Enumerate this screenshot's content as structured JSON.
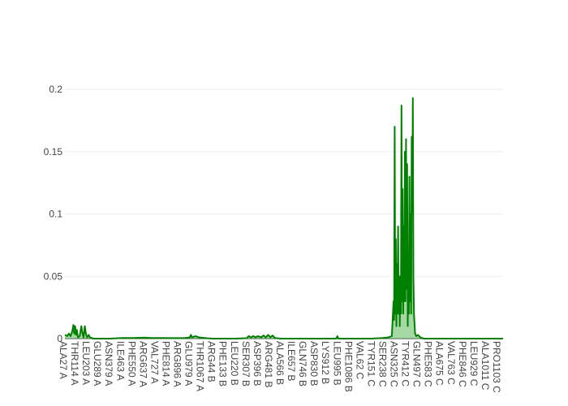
{
  "chart_data": {
    "type": "area",
    "xlabel": "",
    "ylabel": "",
    "ylim": [
      0,
      0.2
    ],
    "yticks": [
      {
        "value": 0,
        "label": "0"
      },
      {
        "value": 0.05,
        "label": "0.05"
      },
      {
        "value": 0.1,
        "label": "0.1"
      },
      {
        "value": 0.15,
        "label": "0.15"
      },
      {
        "value": 0.2,
        "label": "0.2"
      }
    ],
    "grid": true,
    "line_color": "#008000",
    "fill_color": "#5cb85c",
    "categories": [
      "ALA27 A",
      "THR114 A",
      "LEU203 A",
      "GLU289 A",
      "ASN379 A",
      "ILE463 A",
      "PHE550 A",
      "ARG637 A",
      "VAL727 A",
      "PHE814 A",
      "ARG896 A",
      "GLU979 A",
      "THR1067 A",
      "ARG44 B",
      "PHE133 B",
      "LEU220 B",
      "SER307 B",
      "ASP396 B",
      "ARG481 B",
      "ALA566 B",
      "ILE657 B",
      "GLN746 B",
      "ASP830 B",
      "LYS912 B",
      "LEU995 B",
      "PHE1086 B",
      "VAL62 C",
      "TYR151 C",
      "SER238 C",
      "ASN325 C",
      "TYR412 C",
      "GLN497 C",
      "PHE583 C",
      "ALA675 C",
      "VAL763 C",
      "PHE846 C",
      "LEU929 C",
      "ALA1011 C",
      "PRO1103 C"
    ],
    "x_range": [
      0,
      38.6
    ],
    "values": [
      [
        0.0,
        0.003
      ],
      [
        0.2,
        0.002
      ],
      [
        0.35,
        0.004
      ],
      [
        0.5,
        0.002
      ],
      [
        0.65,
        0.006
      ],
      [
        0.75,
        0.011
      ],
      [
        0.82,
        0.004
      ],
      [
        0.9,
        0.01
      ],
      [
        0.97,
        0.003
      ],
      [
        1.05,
        0.007
      ],
      [
        1.15,
        0.001
      ],
      [
        1.3,
        0.002
      ],
      [
        1.45,
        0.01
      ],
      [
        1.55,
        0.004
      ],
      [
        1.65,
        0.001
      ],
      [
        1.75,
        0.01
      ],
      [
        1.85,
        0.004
      ],
      [
        1.95,
        0.001
      ],
      [
        2.1,
        0.003
      ],
      [
        2.2,
        0.001
      ],
      [
        2.5,
        0.0
      ],
      [
        3.0,
        0.0
      ],
      [
        4.0,
        0.0
      ],
      [
        5.0,
        0.0005
      ],
      [
        6.0,
        0.0005
      ],
      [
        7.0,
        0.0008
      ],
      [
        7.6,
        0.0005
      ],
      [
        8.0,
        0.0005
      ],
      [
        8.5,
        0.0005
      ],
      [
        9.5,
        0.0004
      ],
      [
        10.5,
        0.0004
      ],
      [
        11.0,
        0.001
      ],
      [
        11.1,
        0.003
      ],
      [
        11.2,
        0.001
      ],
      [
        11.5,
        0.002
      ],
      [
        11.8,
        0.001
      ],
      [
        12.5,
        0.0003
      ],
      [
        13.0,
        0.0
      ],
      [
        14.0,
        0.0
      ],
      [
        15.0,
        0.0
      ],
      [
        16.0,
        0.0003
      ],
      [
        16.2,
        0.002
      ],
      [
        16.4,
        0.001
      ],
      [
        16.6,
        0.002
      ],
      [
        16.8,
        0.001
      ],
      [
        17.0,
        0.002
      ],
      [
        17.3,
        0.001
      ],
      [
        17.5,
        0.0025
      ],
      [
        17.7,
        0.001
      ],
      [
        17.9,
        0.003
      ],
      [
        18.1,
        0.001
      ],
      [
        18.3,
        0.0025
      ],
      [
        18.5,
        0.0005
      ],
      [
        19.0,
        0.0
      ],
      [
        20.0,
        0.0
      ],
      [
        21.0,
        0.0
      ],
      [
        22.0,
        0.0
      ],
      [
        23.0,
        0.0
      ],
      [
        23.9,
        0.0
      ],
      [
        24.0,
        0.002
      ],
      [
        24.1,
        0.0
      ],
      [
        25.0,
        0.0
      ],
      [
        26.0,
        0.0
      ],
      [
        27.0,
        0.0
      ],
      [
        28.0,
        0.0005
      ],
      [
        28.5,
        0.001
      ],
      [
        28.8,
        0.002
      ],
      [
        28.95,
        0.03
      ],
      [
        29.0,
        0.015
      ],
      [
        29.05,
        0.17
      ],
      [
        29.1,
        0.02
      ],
      [
        29.15,
        0.08
      ],
      [
        29.2,
        0.01
      ],
      [
        29.25,
        0.06
      ],
      [
        29.3,
        0.02
      ],
      [
        29.35,
        0.09
      ],
      [
        29.4,
        0.02
      ],
      [
        29.45,
        0.05
      ],
      [
        29.5,
        0.01
      ],
      [
        29.55,
        0.05
      ],
      [
        29.6,
        0.02
      ],
      [
        29.65,
        0.187
      ],
      [
        29.7,
        0.03
      ],
      [
        29.75,
        0.12
      ],
      [
        29.8,
        0.02
      ],
      [
        29.85,
        0.09
      ],
      [
        29.9,
        0.03
      ],
      [
        29.95,
        0.15
      ],
      [
        30.0,
        0.03
      ],
      [
        30.05,
        0.16
      ],
      [
        30.1,
        0.04
      ],
      [
        30.15,
        0.14
      ],
      [
        30.2,
        0.01
      ],
      [
        30.25,
        0.06
      ],
      [
        30.3,
        0.02
      ],
      [
        30.35,
        0.13
      ],
      [
        30.4,
        0.03
      ],
      [
        30.45,
        0.1
      ],
      [
        30.5,
        0.02
      ],
      [
        30.55,
        0.162
      ],
      [
        30.6,
        0.1
      ],
      [
        30.65,
        0.193
      ],
      [
        30.7,
        0.05
      ],
      [
        30.75,
        0.02
      ],
      [
        30.8,
        0.012
      ],
      [
        30.85,
        0.004
      ],
      [
        30.95,
        0.002
      ],
      [
        31.1,
        0.003
      ],
      [
        31.3,
        0.001
      ],
      [
        31.6,
        0.0
      ],
      [
        32.0,
        0.0
      ],
      [
        33.0,
        0.0
      ],
      [
        34.0,
        0.0
      ],
      [
        35.0,
        0.0
      ],
      [
        36.0,
        0.0
      ],
      [
        37.0,
        0.0
      ],
      [
        38.0,
        0.0
      ],
      [
        38.6,
        0.0
      ]
    ]
  }
}
